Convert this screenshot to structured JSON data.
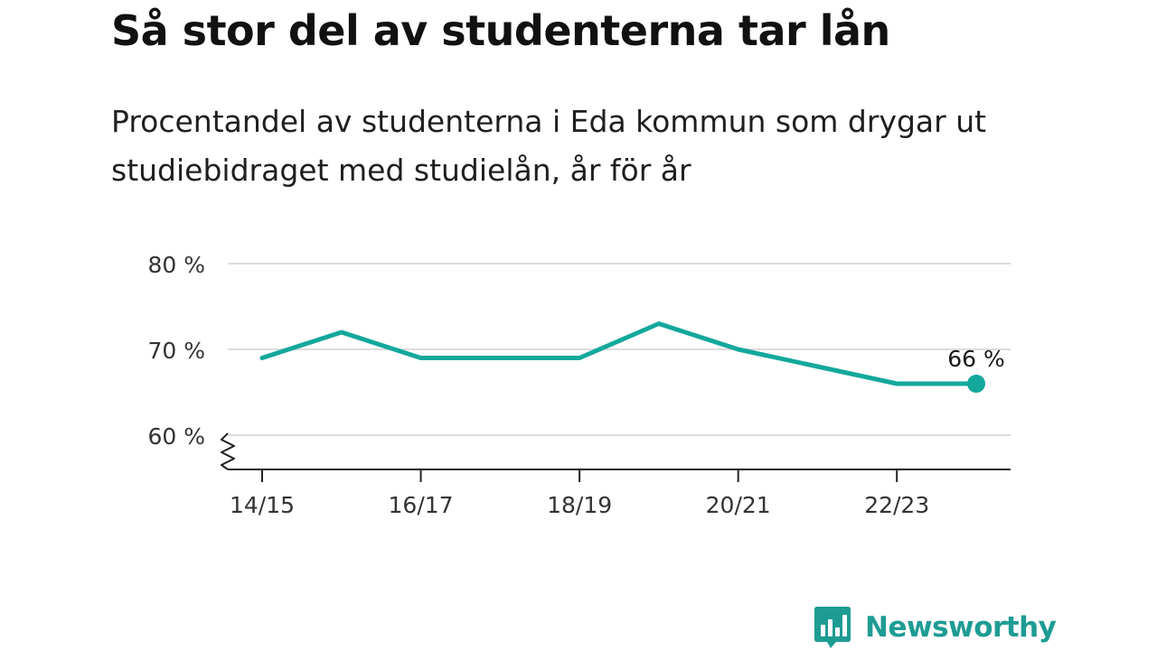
{
  "title": "Så stor del av studenterna tar lån",
  "subtitle": "Procentandel av studenterna i Eda kommun som drygar ut studiebidraget med studielån, år för år",
  "chart_data": {
    "type": "line",
    "x": [
      "14/15",
      "15/16",
      "16/17",
      "17/18",
      "18/19",
      "19/20",
      "20/21",
      "21/22",
      "22/23",
      "23/24"
    ],
    "series": [
      {
        "values": [
          69,
          72,
          69,
          69,
          69,
          73,
          70,
          68,
          66,
          66
        ]
      }
    ],
    "x_tick_labels": [
      "14/15",
      "16/17",
      "18/19",
      "20/21",
      "22/23"
    ],
    "y_ticks": [
      60,
      70,
      80
    ],
    "y_tick_labels": [
      "60 %",
      "70 %",
      "80 %"
    ],
    "ylim": [
      56,
      80
    ],
    "axis_break": true,
    "grid": true,
    "end_label": "66 %",
    "line_color": "#14a89c"
  },
  "branding": {
    "name": "Newsworthy",
    "color": "#1e9c94"
  }
}
